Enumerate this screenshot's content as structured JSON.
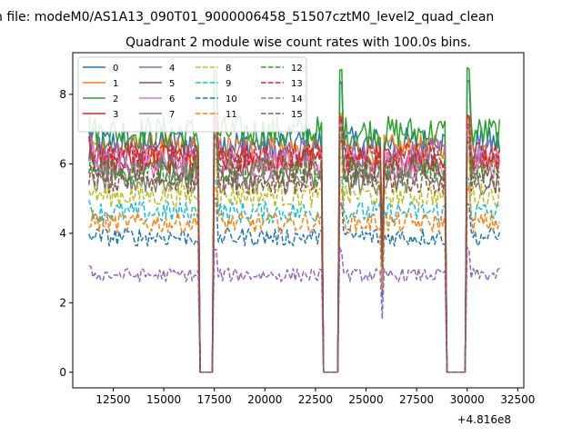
{
  "figure": {
    "suptitle": "n file: modeM0/AS1A13_090T01_9000006458_51507cztM0_level2_quad_clean",
    "title": "Quadrant 2 module wise count rates with 100.0s bins."
  },
  "chart_data": {
    "type": "line",
    "title": "Quadrant 2 module wise count rates with 100.0s bins.",
    "xlabel": "",
    "ylabel": "",
    "x_offset_label": "+4.816e8",
    "xlim": [
      10500,
      32800
    ],
    "ylim": [
      -0.45,
      9.2
    ],
    "xticks": [
      12500,
      15000,
      17500,
      20000,
      22500,
      25000,
      27500,
      30000,
      32500
    ],
    "yticks": [
      0,
      2,
      4,
      6,
      8
    ],
    "grid": false,
    "legend_position": "top-left",
    "legend_columns": 4,
    "x_range": [
      11300,
      31600
    ],
    "bin_seconds": 100,
    "gaps": [
      {
        "start": 16800,
        "end": 17400
      },
      {
        "start": 22900,
        "end": 23600
      },
      {
        "start": 29000,
        "end": 29900
      }
    ],
    "dip": {
      "x": 25800,
      "description": "sharp drop near 25800"
    },
    "series": [
      {
        "name": "0",
        "style": "solid",
        "color": "#1f77b4",
        "mean": 6.6,
        "peak_after_gap": 8.4
      },
      {
        "name": "1",
        "style": "solid",
        "color": "#ff7f0e",
        "mean": 6.4,
        "peak_after_gap": 7.4
      },
      {
        "name": "2",
        "style": "solid",
        "color": "#2ca02c",
        "mean": 6.9,
        "peak_after_gap": 8.7
      },
      {
        "name": "3",
        "style": "solid",
        "color": "#d62728",
        "mean": 6.1,
        "peak_after_gap": 7.4
      },
      {
        "name": "4",
        "style": "solid",
        "color": "#9467bd",
        "mean": 6.3,
        "peak_after_gap": 7.2
      },
      {
        "name": "5",
        "style": "solid",
        "color": "#8c564b",
        "mean": 5.9,
        "peak_after_gap": 7.0
      },
      {
        "name": "6",
        "style": "solid",
        "color": "#e377c2",
        "mean": 6.0,
        "peak_after_gap": 7.1
      },
      {
        "name": "7",
        "style": "solid",
        "color": "#7f7f7f",
        "mean": 5.5,
        "peak_after_gap": 6.8
      },
      {
        "name": "8",
        "style": "dashed",
        "color": "#bcbd22",
        "mean": 5.1,
        "peak_after_gap": 6.2
      },
      {
        "name": "9",
        "style": "dashed",
        "color": "#17becf",
        "mean": 4.6,
        "peak_after_gap": 5.6
      },
      {
        "name": "10",
        "style": "dashed",
        "color": "#1f77b4",
        "mean": 3.9,
        "peak_after_gap": 4.9
      },
      {
        "name": "11",
        "style": "dashed",
        "color": "#ff7f0e",
        "mean": 4.3,
        "peak_after_gap": 5.3
      },
      {
        "name": "12",
        "style": "dashed",
        "color": "#2ca02c",
        "mean": 5.8,
        "peak_after_gap": 7.0
      },
      {
        "name": "13",
        "style": "dashed",
        "color": "#d62728",
        "mean": 6.2,
        "peak_after_gap": 7.3
      },
      {
        "name": "14",
        "style": "dashed",
        "color": "#9467bd",
        "mean": 2.8,
        "peak_after_gap": 3.5
      },
      {
        "name": "15",
        "style": "dashed",
        "color": "#8c564b",
        "mean": 5.5,
        "peak_after_gap": 6.6
      }
    ]
  }
}
